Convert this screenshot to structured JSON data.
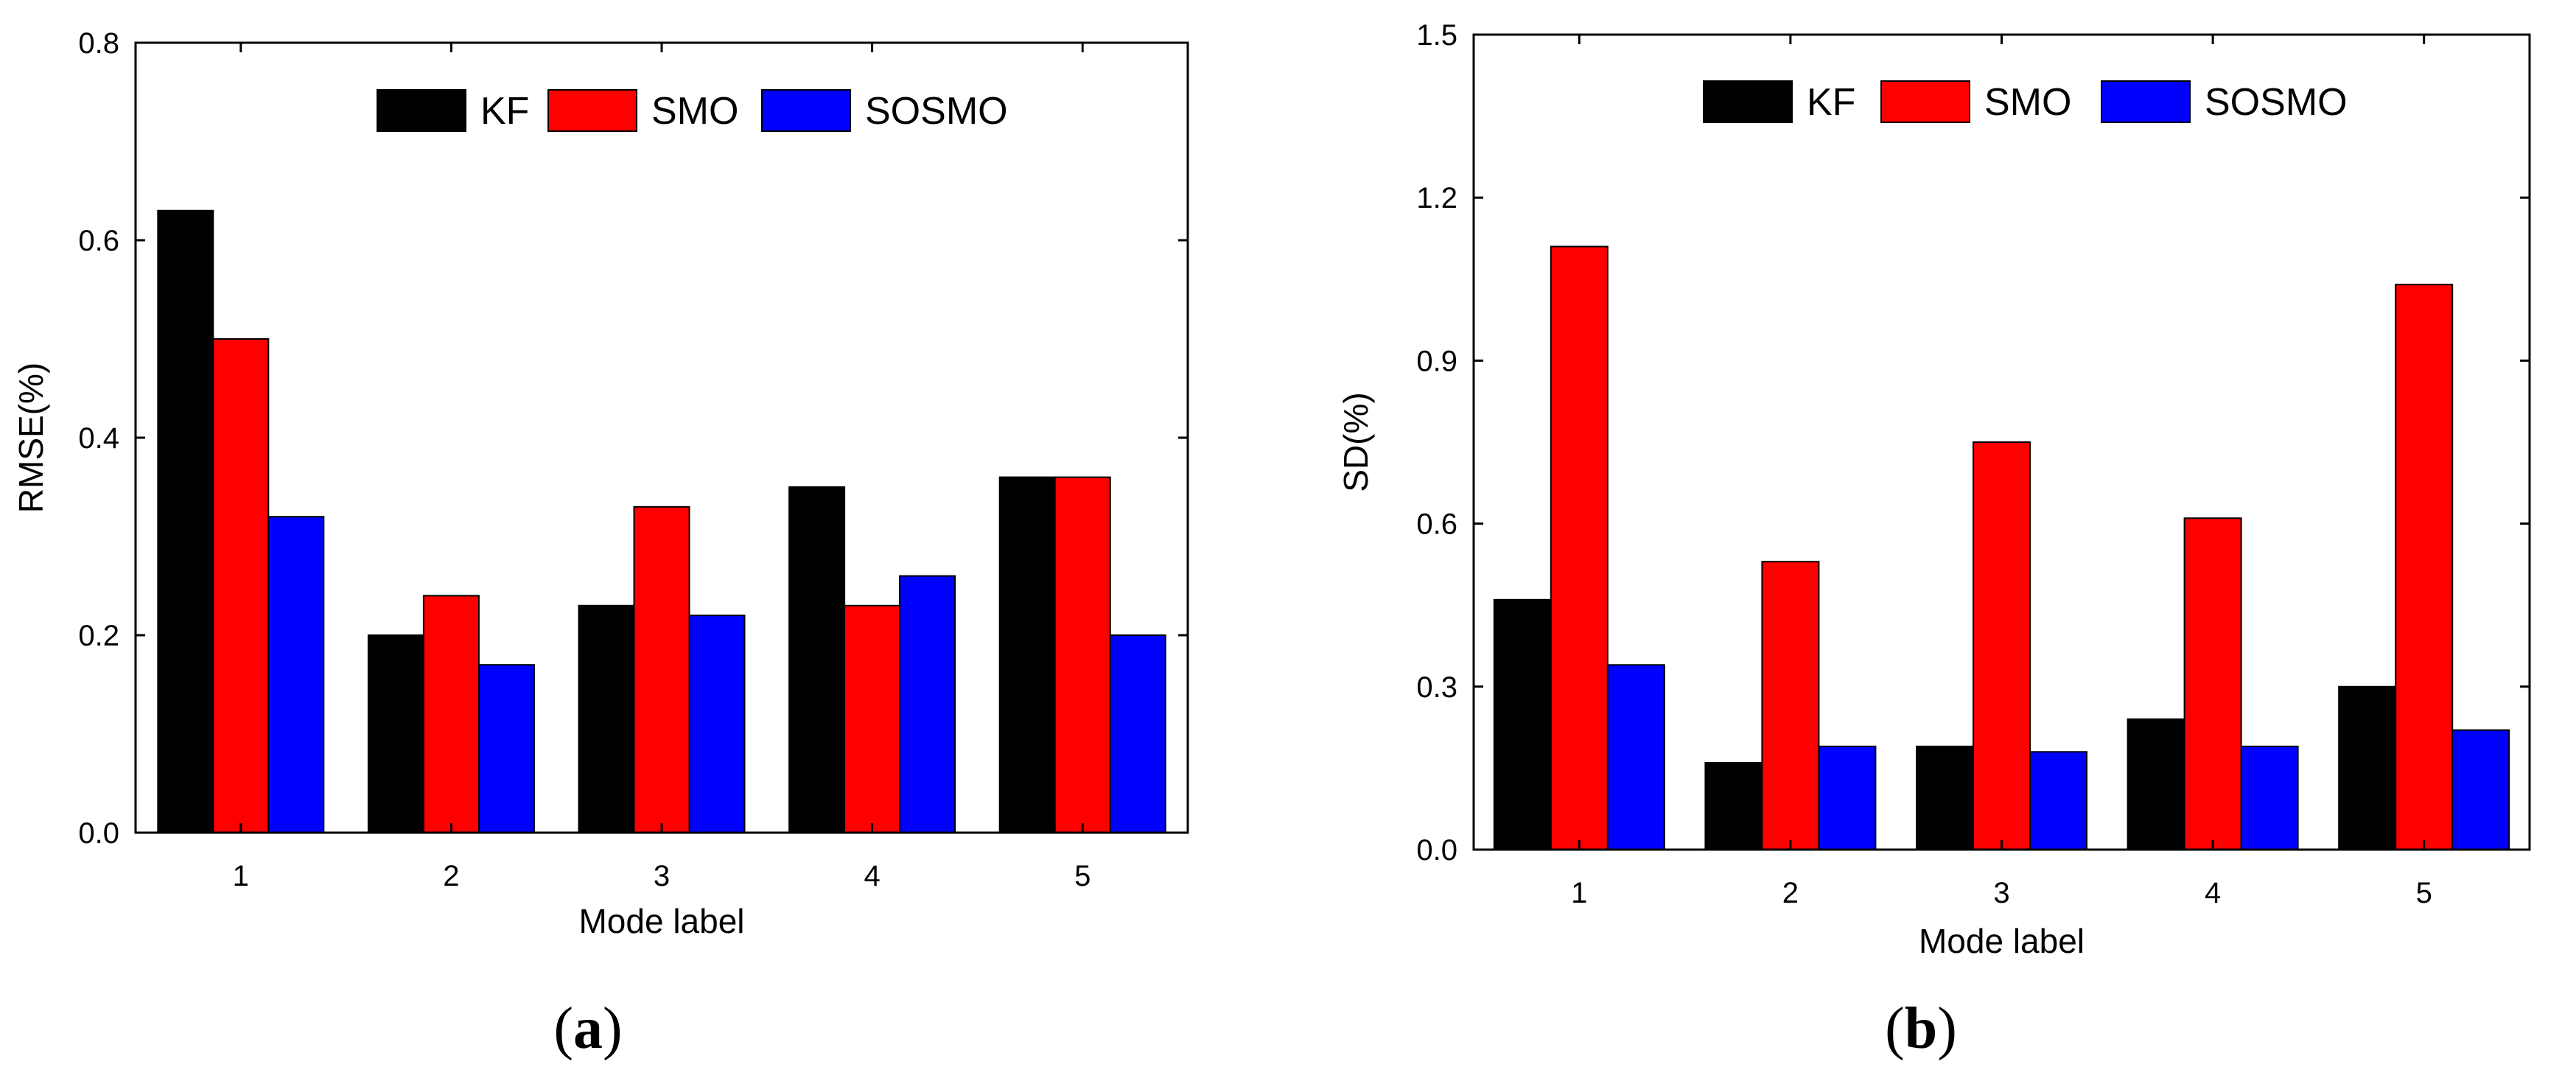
{
  "chart_data": [
    {
      "type": "bar",
      "panel_label": {
        "open": "(",
        "letter": "a",
        "close": ")"
      },
      "title": "",
      "xlabel": "Mode label",
      "ylabel": "RMSE(%)",
      "categories": [
        "1",
        "2",
        "3",
        "4",
        "5"
      ],
      "ylim": [
        0,
        0.8
      ],
      "yticks": [
        0.0,
        0.2,
        0.4,
        0.6,
        0.8
      ],
      "ytick_labels": [
        "0.0",
        "0.2",
        "0.4",
        "0.6",
        "0.8"
      ],
      "grid": false,
      "legend": "top-center",
      "series": [
        {
          "name": "KF",
          "color": "#000000",
          "values": [
            0.63,
            0.2,
            0.23,
            0.35,
            0.36
          ]
        },
        {
          "name": "SMO",
          "color": "#ff0000",
          "values": [
            0.5,
            0.24,
            0.33,
            0.23,
            0.36
          ]
        },
        {
          "name": "SOSMO",
          "color": "#0000ff",
          "values": [
            0.32,
            0.17,
            0.22,
            0.26,
            0.2
          ]
        }
      ]
    },
    {
      "type": "bar",
      "panel_label": {
        "open": "(",
        "letter": "b",
        "close": ")"
      },
      "title": "",
      "xlabel": "Mode label",
      "ylabel": "SD(%)",
      "categories": [
        "1",
        "2",
        "3",
        "4",
        "5"
      ],
      "ylim": [
        0,
        1.5
      ],
      "yticks": [
        0.0,
        0.3,
        0.6,
        0.9,
        1.2,
        1.5
      ],
      "ytick_labels": [
        "0.0",
        "0.3",
        "0.6",
        "0.9",
        "1.2",
        "1.5"
      ],
      "grid": false,
      "legend": "top-center",
      "series": [
        {
          "name": "KF",
          "color": "#000000",
          "values": [
            0.46,
            0.16,
            0.19,
            0.24,
            0.3
          ]
        },
        {
          "name": "SMO",
          "color": "#ff0000",
          "values": [
            1.11,
            0.53,
            0.75,
            0.61,
            1.04
          ]
        },
        {
          "name": "SOSMO",
          "color": "#0000ff",
          "values": [
            0.34,
            0.19,
            0.18,
            0.19,
            0.22
          ]
        }
      ]
    }
  ]
}
